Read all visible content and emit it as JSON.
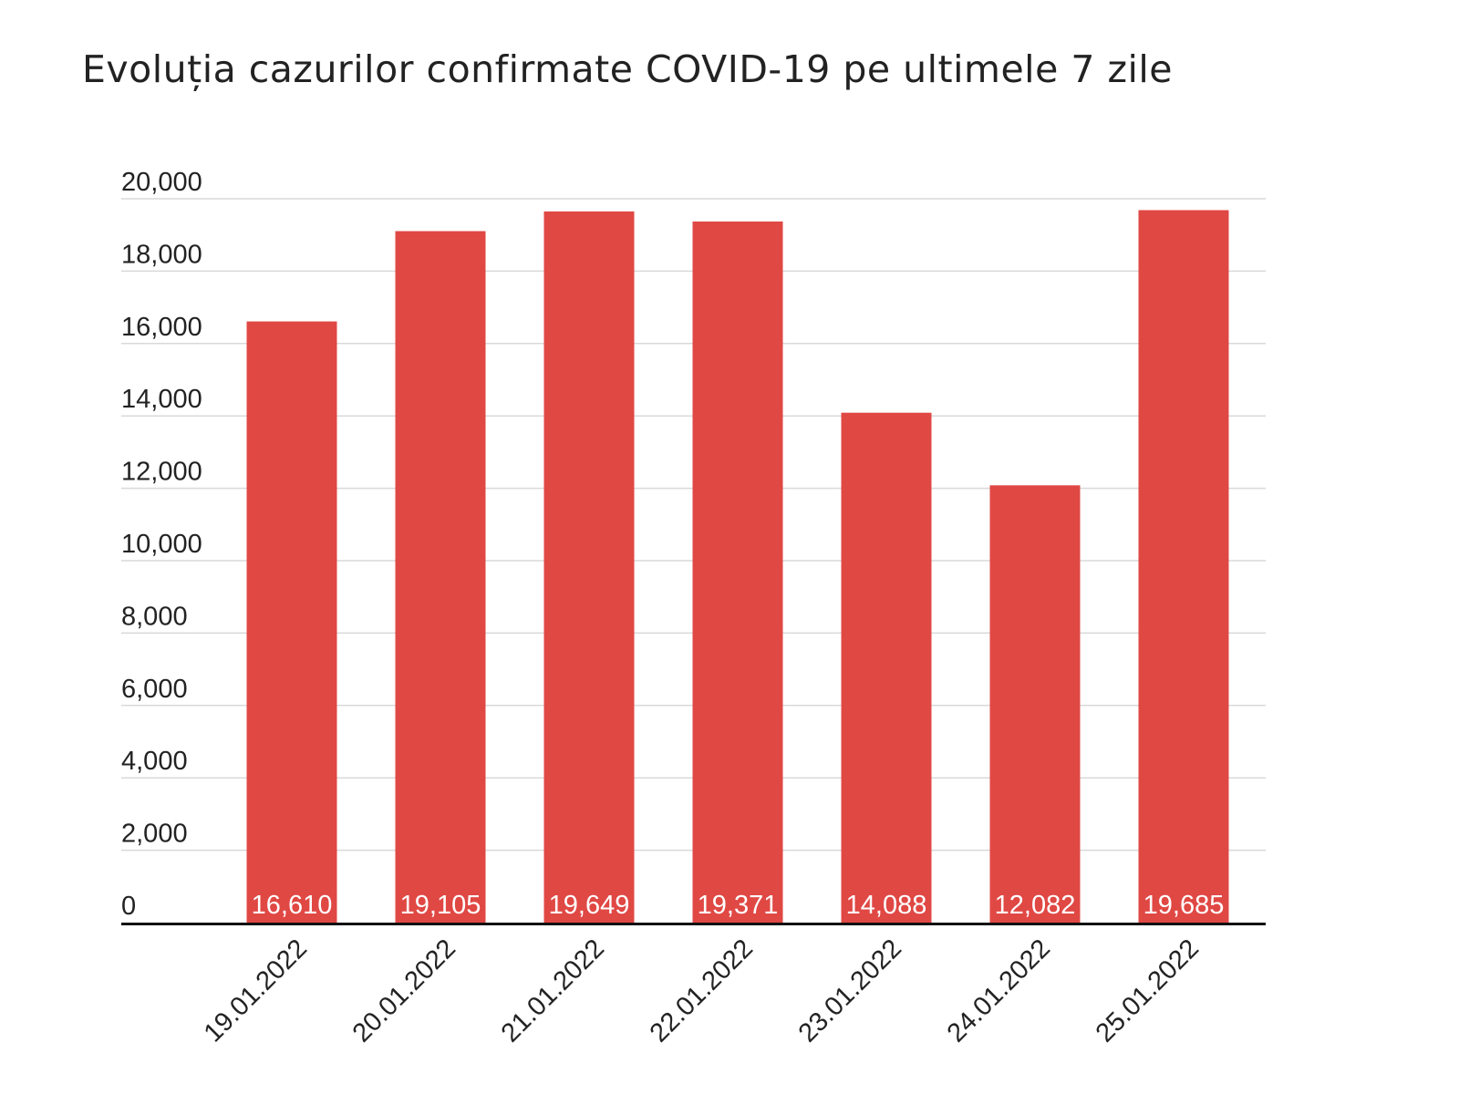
{
  "chart_data": {
    "type": "bar",
    "title": "Evoluția cazurilor confirmate COVID-19 pe ultimele 7 zile",
    "xlabel": "",
    "ylabel": "",
    "categories": [
      "19.01.2022",
      "20.01.2022",
      "21.01.2022",
      "22.01.2022",
      "23.01.2022",
      "24.01.2022",
      "25.01.2022"
    ],
    "values": [
      16610,
      19105,
      19649,
      19371,
      14088,
      12082,
      19685
    ],
    "data_labels": [
      "16,610",
      "19,105",
      "19,649",
      "19,371",
      "14,088",
      "12,082",
      "19,685"
    ],
    "ylim": [
      0,
      20000
    ],
    "yticks": [
      0,
      2000,
      4000,
      6000,
      8000,
      10000,
      12000,
      14000,
      16000,
      18000,
      20000
    ],
    "ytick_labels": [
      "0",
      "2,000",
      "4,000",
      "6,000",
      "8,000",
      "10,000",
      "12,000",
      "14,000",
      "16,000",
      "18,000",
      "20,000"
    ],
    "grid": true,
    "legend": "none",
    "bar_color": "#e04844",
    "grid_color": "#d9d9d9",
    "axis_color": "#111111"
  }
}
